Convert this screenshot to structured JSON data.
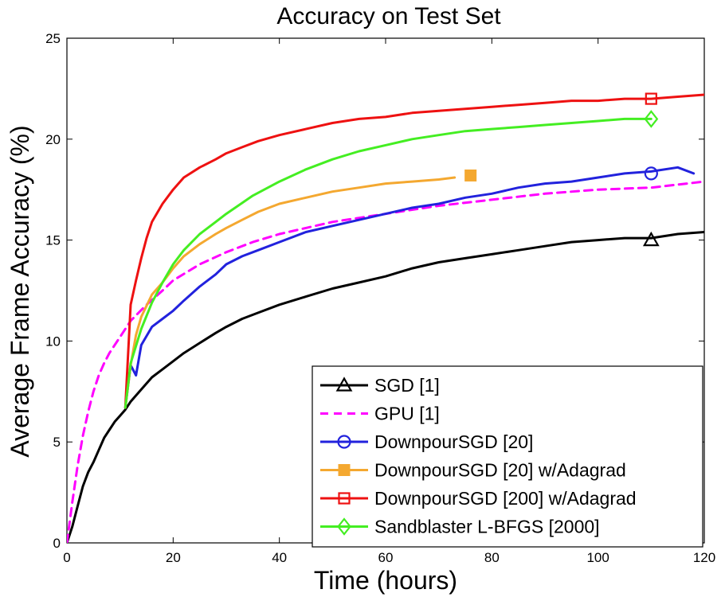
{
  "chart_data": {
    "type": "line",
    "title": "Accuracy on Test Set",
    "xlabel": "Time (hours)",
    "ylabel": "Average Frame Accuracy (%)",
    "xlim": [
      0,
      120
    ],
    "ylim": [
      0,
      25
    ],
    "xticks": [
      0,
      20,
      40,
      60,
      80,
      100,
      120
    ],
    "yticks": [
      0,
      5,
      10,
      15,
      20,
      25
    ],
    "grid": false,
    "legend_position": "bottom-right",
    "series": [
      {
        "name": "SGD [1]",
        "color": "#000000",
        "dash": "solid",
        "marker": "triangle",
        "marker_at": [
          110,
          15.0
        ],
        "x": [
          0,
          1,
          2,
          3,
          4,
          5,
          6,
          7,
          8,
          9,
          10,
          11,
          12,
          14,
          16,
          18,
          20,
          22,
          25,
          28,
          30,
          33,
          36,
          40,
          45,
          50,
          55,
          60,
          65,
          70,
          75,
          80,
          85,
          90,
          95,
          100,
          105,
          110,
          115,
          120
        ],
        "y": [
          0,
          0.8,
          1.8,
          2.8,
          3.5,
          4.0,
          4.6,
          5.2,
          5.6,
          6.0,
          6.3,
          6.6,
          7.0,
          7.6,
          8.2,
          8.6,
          9.0,
          9.4,
          9.9,
          10.4,
          10.7,
          11.1,
          11.4,
          11.8,
          12.2,
          12.6,
          12.9,
          13.2,
          13.6,
          13.9,
          14.1,
          14.3,
          14.5,
          14.7,
          14.9,
          15.0,
          15.1,
          15.1,
          15.3,
          15.4
        ]
      },
      {
        "name": "GPU [1]",
        "color": "#ff00ff",
        "dash": "dashed",
        "marker": "none",
        "x": [
          0,
          1,
          2,
          3,
          4,
          5,
          6,
          7,
          8,
          10,
          12,
          15,
          18,
          20,
          25,
          30,
          35,
          40,
          45,
          50,
          55,
          60,
          70,
          80,
          90,
          100,
          110,
          120
        ],
        "y": [
          0,
          2.0,
          3.8,
          5.3,
          6.5,
          7.5,
          8.3,
          8.9,
          9.4,
          10.2,
          11.0,
          11.8,
          12.5,
          13.0,
          13.8,
          14.4,
          14.9,
          15.3,
          15.6,
          15.9,
          16.1,
          16.3,
          16.7,
          17.0,
          17.3,
          17.5,
          17.6,
          17.9
        ]
      },
      {
        "name": "DownpourSGD [20]",
        "color": "#2222dd",
        "dash": "solid",
        "marker": "circle",
        "marker_at": [
          110,
          18.3
        ],
        "x": [
          11,
          12,
          13,
          14,
          16,
          18,
          20,
          22,
          25,
          28,
          30,
          33,
          36,
          40,
          45,
          50,
          55,
          60,
          65,
          70,
          75,
          80,
          85,
          90,
          95,
          100,
          105,
          110,
          115,
          118
        ],
        "y": [
          6.7,
          8.8,
          8.3,
          9.8,
          10.7,
          11.1,
          11.5,
          12.0,
          12.7,
          13.3,
          13.8,
          14.2,
          14.5,
          14.9,
          15.4,
          15.7,
          16.0,
          16.3,
          16.6,
          16.8,
          17.1,
          17.3,
          17.6,
          17.8,
          17.9,
          18.1,
          18.3,
          18.4,
          18.6,
          18.3
        ]
      },
      {
        "name": "DownpourSGD [20] w/Adagrad",
        "color": "#f4a830",
        "dash": "solid",
        "marker": "square-filled",
        "marker_at": [
          76,
          18.2
        ],
        "x": [
          11,
          12,
          13,
          14,
          16,
          18,
          20,
          22,
          25,
          28,
          30,
          33,
          36,
          40,
          45,
          50,
          55,
          60,
          65,
          70,
          73
        ],
        "y": [
          6.7,
          8.8,
          10.3,
          11.2,
          12.3,
          12.9,
          13.6,
          14.2,
          14.8,
          15.3,
          15.6,
          16.0,
          16.4,
          16.8,
          17.1,
          17.4,
          17.6,
          17.8,
          17.9,
          18.0,
          18.1
        ]
      },
      {
        "name": "DownpourSGD [200] w/Adagrad",
        "color": "#ee1111",
        "dash": "solid",
        "marker": "square",
        "marker_at": [
          110,
          22.0
        ],
        "x": [
          11,
          12,
          13,
          14,
          15,
          16,
          18,
          20,
          22,
          25,
          28,
          30,
          33,
          36,
          40,
          45,
          50,
          55,
          60,
          65,
          70,
          75,
          80,
          85,
          90,
          95,
          100,
          105,
          110,
          115,
          120
        ],
        "y": [
          6.7,
          11.8,
          13.0,
          14.1,
          15.1,
          15.9,
          16.8,
          17.5,
          18.1,
          18.6,
          19.0,
          19.3,
          19.6,
          19.9,
          20.2,
          20.5,
          20.8,
          21.0,
          21.1,
          21.3,
          21.4,
          21.5,
          21.6,
          21.7,
          21.8,
          21.9,
          21.9,
          22.0,
          22.0,
          22.1,
          22.2
        ]
      },
      {
        "name": "Sandblaster L-BFGS [2000]",
        "color": "#44ee22",
        "dash": "solid",
        "marker": "diamond",
        "marker_at": [
          110,
          21.0
        ],
        "x": [
          11,
          12,
          14,
          16,
          18,
          20,
          22,
          25,
          28,
          30,
          35,
          40,
          45,
          50,
          55,
          60,
          65,
          70,
          75,
          80,
          85,
          90,
          95,
          100,
          105,
          110
        ],
        "y": [
          6.7,
          8.9,
          10.6,
          11.9,
          12.9,
          13.8,
          14.5,
          15.3,
          15.9,
          16.3,
          17.2,
          17.9,
          18.5,
          19.0,
          19.4,
          19.7,
          20.0,
          20.2,
          20.4,
          20.5,
          20.6,
          20.7,
          20.8,
          20.9,
          21.0,
          21.0
        ]
      }
    ]
  }
}
